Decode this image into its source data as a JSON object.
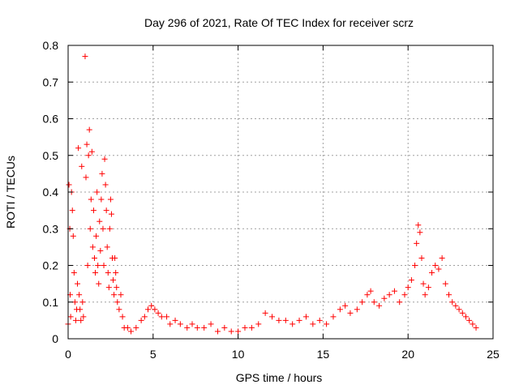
{
  "chart_data": {
    "type": "scatter",
    "title": "Day 296 of 2021, Rate Of TEC Index for receiver scrz",
    "xlabel": "GPS time / hours",
    "ylabel": "ROTI / TECUs",
    "xlim": [
      0,
      25
    ],
    "ylim": [
      0,
      0.8
    ],
    "x_ticks": [
      0,
      5,
      10,
      15,
      20,
      25
    ],
    "y_ticks": [
      0,
      0.1,
      0.2,
      0.3,
      0.4,
      0.5,
      0.6,
      0.7,
      0.8
    ],
    "x_tick_labels": [
      "0",
      "5",
      "10",
      "15",
      "20",
      "25"
    ],
    "y_tick_labels": [
      "0",
      "0.1",
      "0.2",
      "0.3",
      "0.4",
      "0.5",
      "0.6",
      "0.7",
      "0.8"
    ],
    "grid": true,
    "marker": "+",
    "color": "#ff0000",
    "series": [
      {
        "points": [
          [
            0.0,
            0.04
          ],
          [
            0.05,
            0.42
          ],
          [
            0.1,
            0.3
          ],
          [
            0.12,
            0.12
          ],
          [
            0.15,
            0.06
          ],
          [
            0.2,
            0.4
          ],
          [
            0.25,
            0.35
          ],
          [
            0.3,
            0.28
          ],
          [
            0.35,
            0.18
          ],
          [
            0.4,
            0.1
          ],
          [
            0.45,
            0.05
          ],
          [
            0.5,
            0.08
          ],
          [
            0.55,
            0.15
          ],
          [
            0.6,
            0.52
          ],
          [
            0.65,
            0.12
          ],
          [
            0.7,
            0.08
          ],
          [
            0.75,
            0.05
          ],
          [
            0.8,
            0.47
          ],
          [
            0.85,
            0.1
          ],
          [
            0.9,
            0.06
          ],
          [
            1.0,
            0.77
          ],
          [
            1.05,
            0.44
          ],
          [
            1.1,
            0.53
          ],
          [
            1.15,
            0.2
          ],
          [
            1.2,
            0.5
          ],
          [
            1.25,
            0.57
          ],
          [
            1.3,
            0.3
          ],
          [
            1.35,
            0.38
          ],
          [
            1.4,
            0.51
          ],
          [
            1.45,
            0.25
          ],
          [
            1.5,
            0.35
          ],
          [
            1.55,
            0.22
          ],
          [
            1.6,
            0.18
          ],
          [
            1.65,
            0.28
          ],
          [
            1.7,
            0.4
          ],
          [
            1.75,
            0.2
          ],
          [
            1.8,
            0.15
          ],
          [
            1.85,
            0.32
          ],
          [
            1.9,
            0.24
          ],
          [
            1.95,
            0.38
          ],
          [
            2.0,
            0.45
          ],
          [
            2.05,
            0.3
          ],
          [
            2.1,
            0.2
          ],
          [
            2.15,
            0.49
          ],
          [
            2.2,
            0.42
          ],
          [
            2.25,
            0.35
          ],
          [
            2.3,
            0.25
          ],
          [
            2.35,
            0.18
          ],
          [
            2.4,
            0.14
          ],
          [
            2.45,
            0.3
          ],
          [
            2.5,
            0.38
          ],
          [
            2.55,
            0.34
          ],
          [
            2.6,
            0.22
          ],
          [
            2.65,
            0.16
          ],
          [
            2.7,
            0.12
          ],
          [
            2.75,
            0.22
          ],
          [
            2.8,
            0.18
          ],
          [
            2.85,
            0.14
          ],
          [
            2.9,
            0.1
          ],
          [
            3.0,
            0.08
          ],
          [
            3.1,
            0.12
          ],
          [
            3.2,
            0.06
          ],
          [
            3.3,
            0.03
          ],
          [
            3.5,
            0.03
          ],
          [
            3.7,
            0.02
          ],
          [
            4.0,
            0.03
          ],
          [
            4.3,
            0.05
          ],
          [
            4.5,
            0.06
          ],
          [
            4.7,
            0.08
          ],
          [
            4.9,
            0.09
          ],
          [
            5.1,
            0.08
          ],
          [
            5.3,
            0.07
          ],
          [
            5.5,
            0.06
          ],
          [
            5.8,
            0.06
          ],
          [
            6.0,
            0.04
          ],
          [
            6.3,
            0.05
          ],
          [
            6.6,
            0.04
          ],
          [
            7.0,
            0.03
          ],
          [
            7.3,
            0.04
          ],
          [
            7.6,
            0.03
          ],
          [
            8.0,
            0.03
          ],
          [
            8.4,
            0.04
          ],
          [
            8.8,
            0.02
          ],
          [
            9.2,
            0.03
          ],
          [
            9.6,
            0.02
          ],
          [
            10.0,
            0.02
          ],
          [
            10.4,
            0.03
          ],
          [
            10.8,
            0.03
          ],
          [
            11.2,
            0.04
          ],
          [
            11.6,
            0.07
          ],
          [
            12.0,
            0.06
          ],
          [
            12.4,
            0.05
          ],
          [
            12.8,
            0.05
          ],
          [
            13.2,
            0.04
          ],
          [
            13.6,
            0.05
          ],
          [
            14.0,
            0.06
          ],
          [
            14.4,
            0.04
          ],
          [
            14.8,
            0.05
          ],
          [
            15.2,
            0.04
          ],
          [
            15.6,
            0.06
          ],
          [
            16.0,
            0.08
          ],
          [
            16.3,
            0.09
          ],
          [
            16.6,
            0.07
          ],
          [
            17.0,
            0.08
          ],
          [
            17.3,
            0.1
          ],
          [
            17.6,
            0.12
          ],
          [
            17.8,
            0.13
          ],
          [
            18.0,
            0.1
          ],
          [
            18.3,
            0.09
          ],
          [
            18.6,
            0.11
          ],
          [
            18.9,
            0.12
          ],
          [
            19.2,
            0.13
          ],
          [
            19.5,
            0.1
          ],
          [
            19.8,
            0.12
          ],
          [
            20.0,
            0.14
          ],
          [
            20.2,
            0.16
          ],
          [
            20.4,
            0.2
          ],
          [
            20.5,
            0.26
          ],
          [
            20.6,
            0.31
          ],
          [
            20.7,
            0.29
          ],
          [
            20.8,
            0.22
          ],
          [
            20.9,
            0.15
          ],
          [
            21.0,
            0.12
          ],
          [
            21.2,
            0.14
          ],
          [
            21.4,
            0.18
          ],
          [
            21.6,
            0.2
          ],
          [
            21.8,
            0.19
          ],
          [
            22.0,
            0.22
          ],
          [
            22.2,
            0.15
          ],
          [
            22.4,
            0.12
          ],
          [
            22.6,
            0.1
          ],
          [
            22.8,
            0.09
          ],
          [
            23.0,
            0.08
          ],
          [
            23.2,
            0.07
          ],
          [
            23.4,
            0.06
          ],
          [
            23.6,
            0.05
          ],
          [
            23.8,
            0.04
          ],
          [
            24.0,
            0.03
          ]
        ]
      }
    ]
  }
}
